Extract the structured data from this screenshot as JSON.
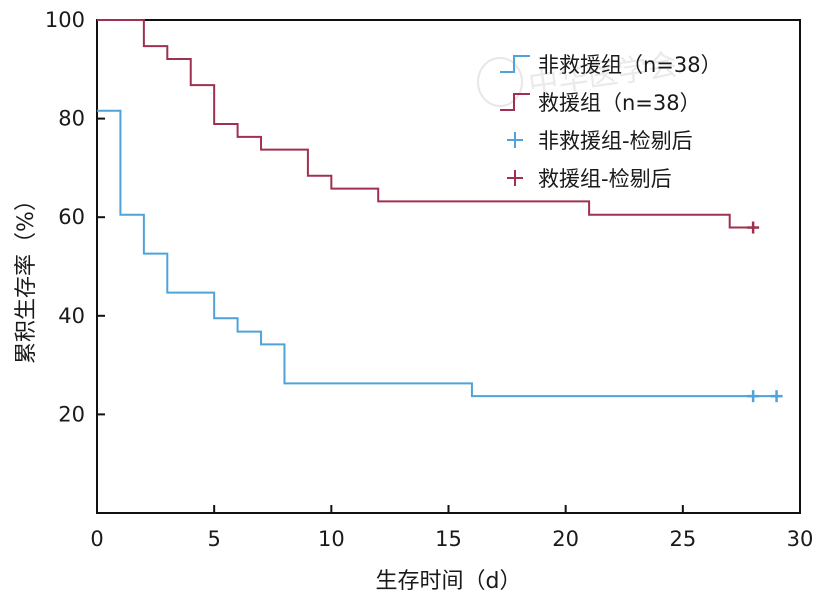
{
  "chart_data": {
    "type": "line",
    "step": true,
    "title": "",
    "xlabel": "生存时间（d）",
    "ylabel": "累积生存率（%）",
    "xlim": [
      0,
      30
    ],
    "ylim": [
      0,
      100
    ],
    "x_ticks": [
      0,
      5,
      10,
      15,
      20,
      25,
      30
    ],
    "x_tick_labels": [
      "0",
      "5",
      "10",
      "15",
      "20",
      "25",
      "30"
    ],
    "y_ticks": [
      20,
      40,
      60,
      80,
      100
    ],
    "y_tick_labels": [
      "20",
      "40",
      "60",
      "80",
      "100"
    ],
    "grid": false,
    "legend_position": "top-right",
    "legend": [
      {
        "label": "非救援组（n=38）",
        "color": "#4fa3d8",
        "marker": "line"
      },
      {
        "label": "救援组（n=38）",
        "color": "#a0304f",
        "marker": "line"
      },
      {
        "label": "非救援组-检剔后",
        "color": "#4fa3d8",
        "marker": "plus"
      },
      {
        "label": "救援组-检剔后",
        "color": "#a0304f",
        "marker": "plus"
      }
    ],
    "series": [
      {
        "label": "非救援组（n=38）",
        "color": "#4fa3d8",
        "x": [
          0,
          1,
          2,
          3,
          5,
          6,
          7,
          8,
          16,
          29
        ],
        "y": [
          81.6,
          60.5,
          52.6,
          44.7,
          39.5,
          36.8,
          34.2,
          26.3,
          23.7,
          23.7
        ],
        "censored": [
          {
            "x": 28,
            "y": 23.7
          },
          {
            "x": 29,
            "y": 23.7
          }
        ]
      },
      {
        "label": "救援组（n=38）",
        "color": "#a0304f",
        "x": [
          0,
          2,
          3,
          4,
          5,
          6,
          7,
          9,
          10,
          12,
          21,
          27,
          28
        ],
        "y": [
          100,
          94.7,
          92.1,
          86.8,
          78.9,
          76.3,
          73.7,
          68.4,
          65.8,
          63.2,
          60.5,
          57.9,
          57.9
        ],
        "censored": [
          {
            "x": 28,
            "y": 57.9
          }
        ]
      }
    ]
  },
  "watermark_text": "中华医学会"
}
